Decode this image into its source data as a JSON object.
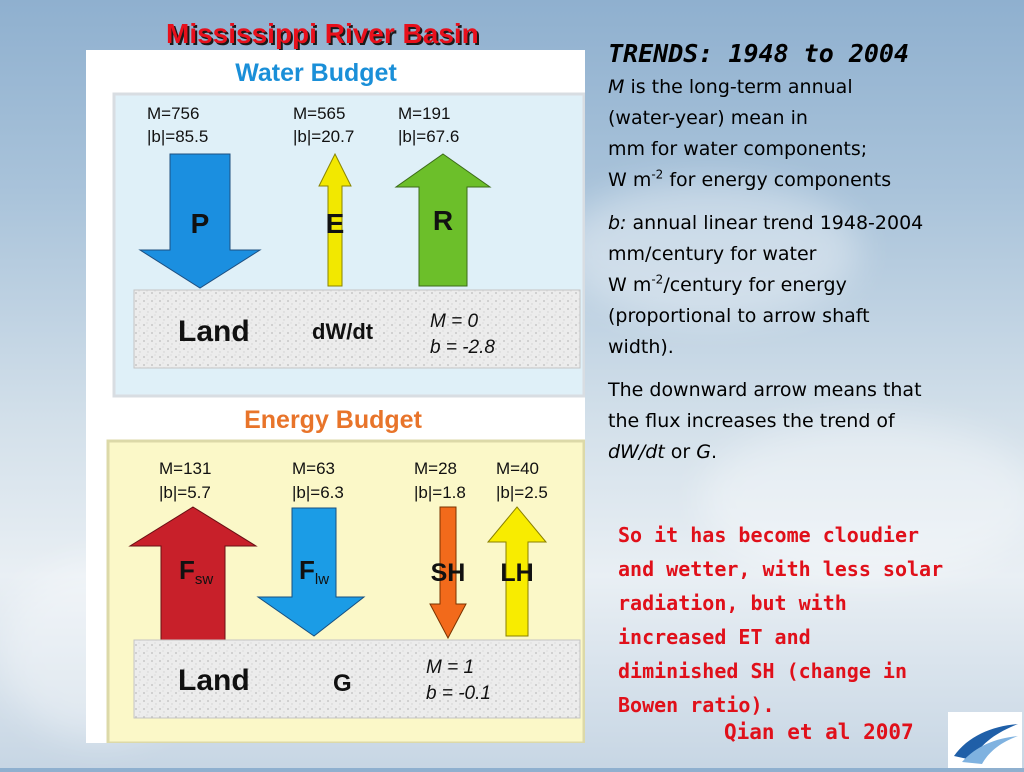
{
  "title": "Mississippi River Basin",
  "water": {
    "heading": "Water Budget",
    "fluxes": [
      {
        "symbol": "P",
        "m": "M=756",
        "b": "|b|=85.5",
        "color": "#1b8fe0",
        "direction": "down"
      },
      {
        "symbol": "E",
        "m": "M=565",
        "b": "|b|=20.7",
        "color": "#f2e800",
        "direction": "up"
      },
      {
        "symbol": "R",
        "m": "M=191",
        "b": "|b|=67.6",
        "color": "#6cbf2a",
        "direction": "up"
      }
    ],
    "land": {
      "label": "Land",
      "storage": "dW/dt",
      "m": "M =  0",
      "b": "b = -2.8"
    }
  },
  "energy": {
    "heading": "Energy Budget",
    "fluxes": [
      {
        "symbol": "F",
        "sub": "sw",
        "m": "M=131",
        "b": "|b|=5.7",
        "color": "#c8202a",
        "direction": "up"
      },
      {
        "symbol": "F",
        "sub": "lw",
        "m": "M=63",
        "b": "|b|=6.3",
        "color": "#1b9ce6",
        "direction": "down"
      },
      {
        "symbol": "SH",
        "m": "M=28",
        "b": "|b|=1.8",
        "color": "#f26a1b",
        "direction": "down"
      },
      {
        "symbol": "LH",
        "m": "M=40",
        "b": "|b|=2.5",
        "color": "#f8ec00",
        "direction": "up"
      }
    ],
    "land": {
      "label": "Land",
      "storage": "G",
      "m": "M =  1",
      "b": "b = -0.1"
    }
  },
  "notes": {
    "heading": "TRENDS: 1948 to 2004",
    "m_def": {
      "line1_italic": "M",
      "line1": " is the long-term annual",
      "line2": "(water-year) mean in",
      "line3": "mm  for water components;",
      "line4": "W m",
      "line4_sup": "-2",
      "line4_end": " for energy components"
    },
    "b_def": {
      "line1_italic": "b:",
      "line1": " annual linear trend 1948-2004",
      "line2": "mm/century for water",
      "line3": "W m",
      "line3_sup": "-2",
      "line3_end": "/century for energy",
      "line4": "(proportional to arrow shaft",
      "line5": "width)."
    },
    "arrow_note": {
      "line1": "The downward arrow means that",
      "line2": "the flux increases the trend of",
      "line3_italic1": "dW/dt",
      "line3_mid": " or ",
      "line3_italic2": "G",
      "line3_end": "."
    }
  },
  "conclusion": [
    "So it has become cloudier",
    "and wetter, with less solar",
    "radiation, but with",
    "increased ET and",
    "diminished SH (change in",
    "Bowen ratio)."
  ],
  "citation": "Qian et al 2007",
  "colors": {
    "title": "#e8101c",
    "water_heading": "#1a8fd8",
    "energy_heading": "#e8742a",
    "water_panel": "#dff0f8",
    "energy_panel": "#fbf8c8",
    "conclusion": "#e0101a"
  }
}
